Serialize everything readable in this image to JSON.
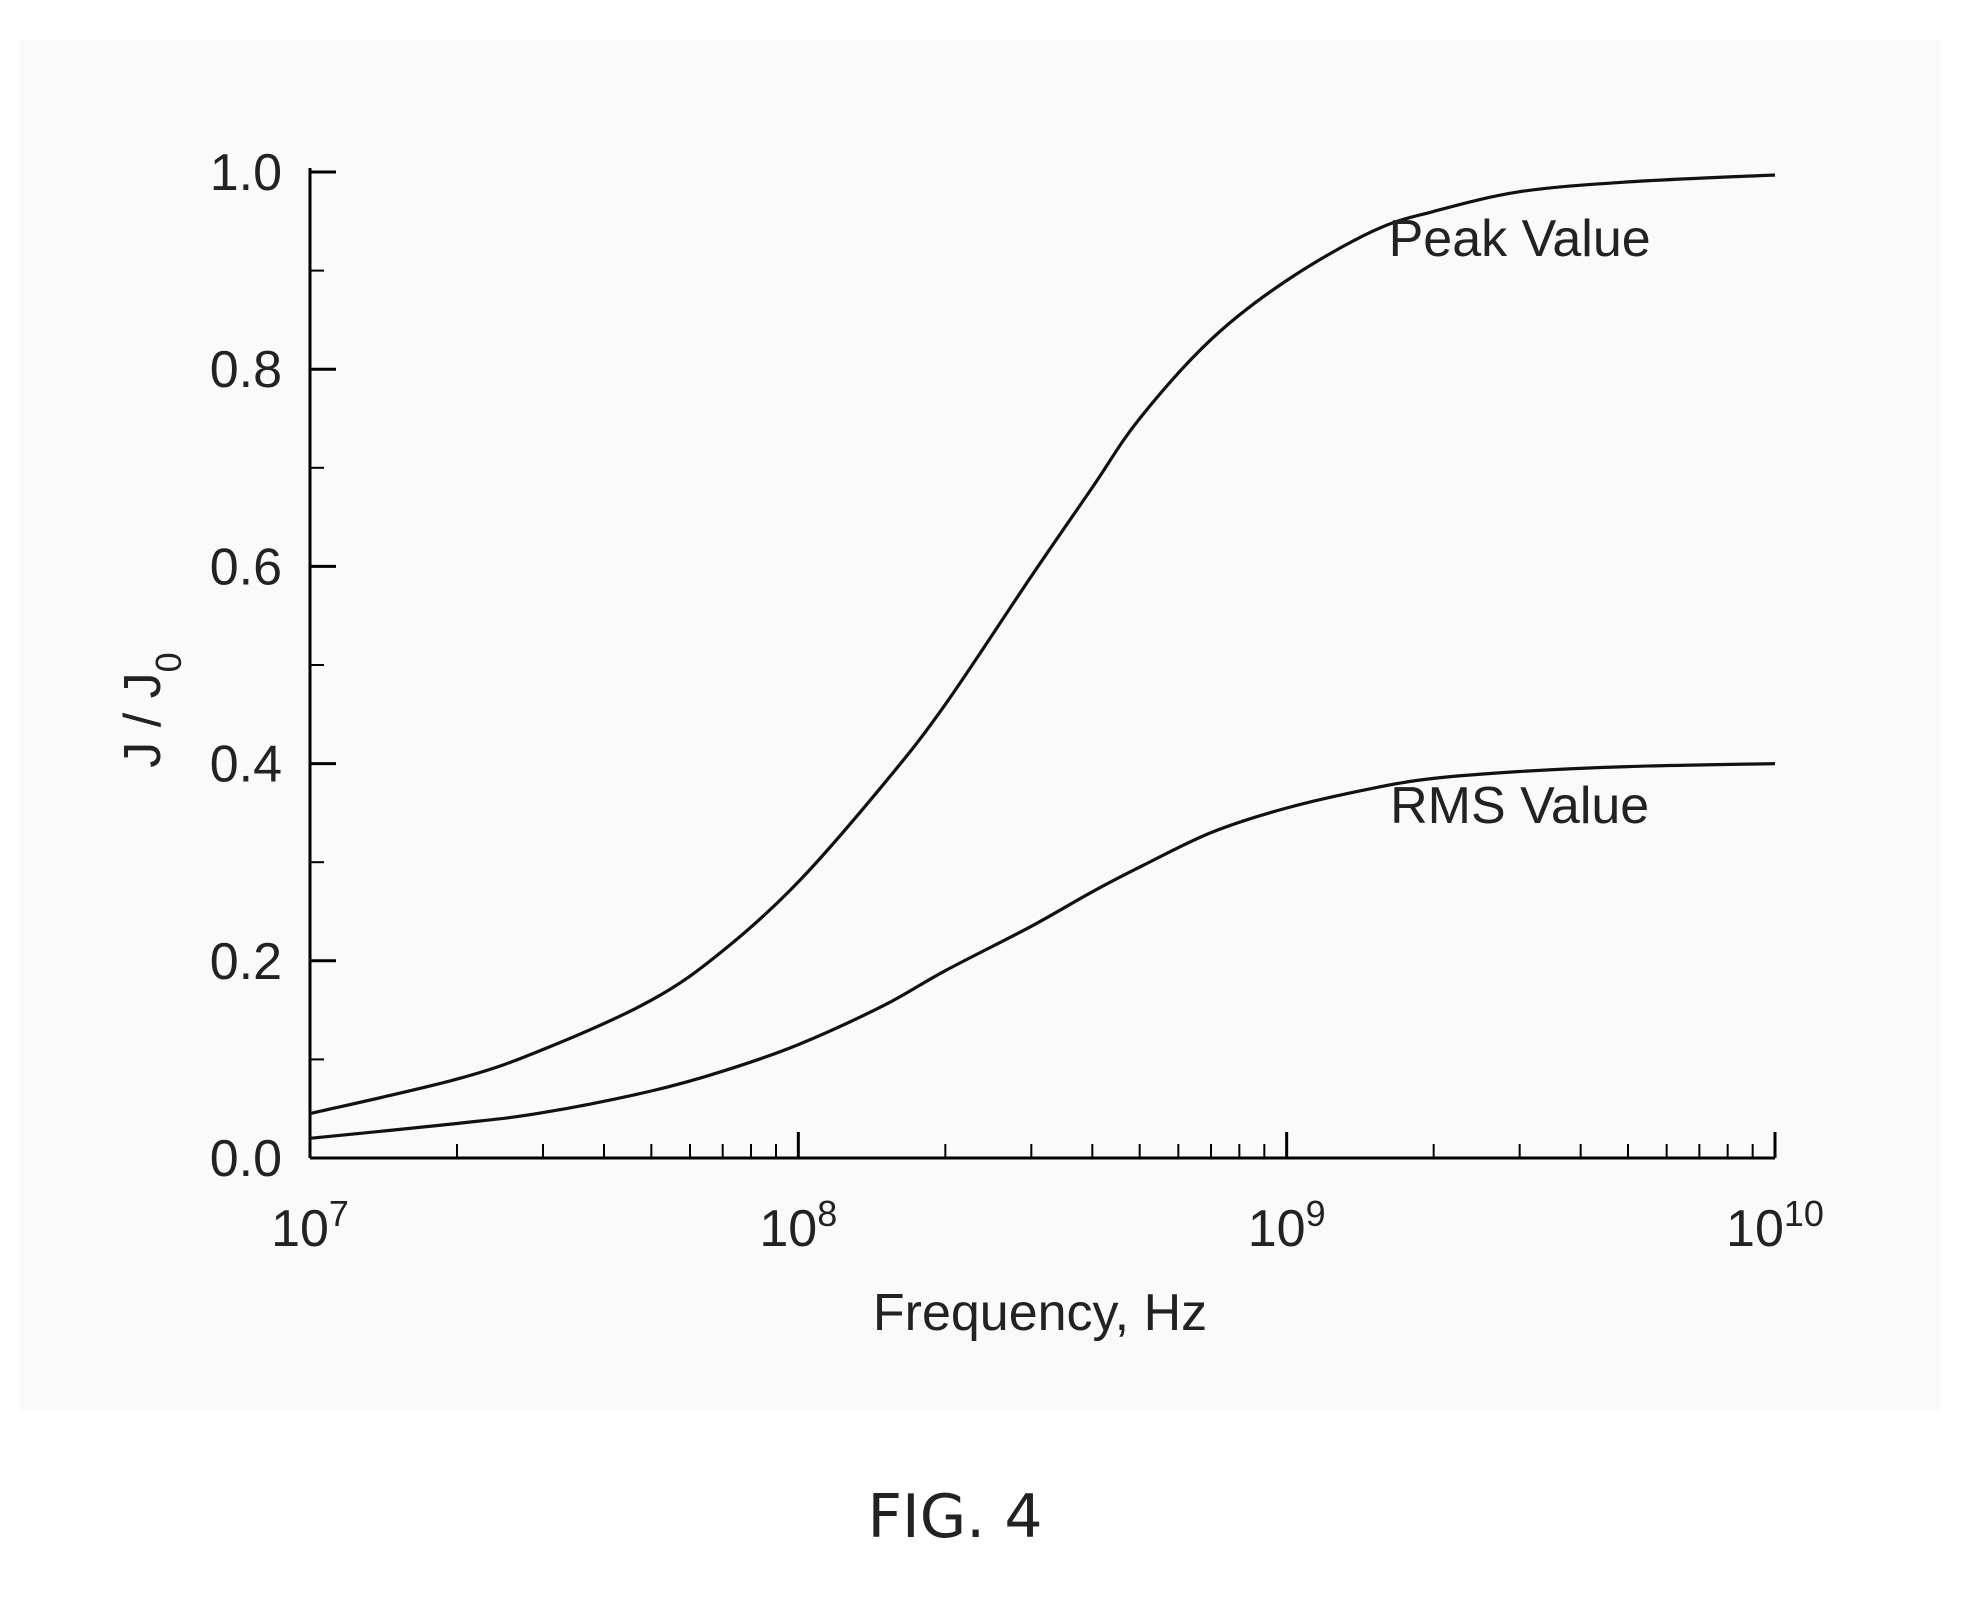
{
  "chart_data": {
    "type": "line",
    "xscale": "log",
    "xlim": [
      10000000,
      10000000000
    ],
    "ylim": [
      0,
      1.0
    ],
    "xlabel": "Frequency, Hz",
    "ylabel": {
      "main": "J / J",
      "sub": "0"
    },
    "x_tick_labels": [
      {
        "base": "10",
        "exp": "7",
        "value": 10000000
      },
      {
        "base": "10",
        "exp": "8",
        "value": 100000000
      },
      {
        "base": "10",
        "exp": "9",
        "value": 1000000000
      },
      {
        "base": "10",
        "exp": "10",
        "value": 10000000000
      }
    ],
    "y_tick_labels": [
      {
        "label": "0.0",
        "value": 0.0
      },
      {
        "label": "0.2",
        "value": 0.2
      },
      {
        "label": "0.4",
        "value": 0.4
      },
      {
        "label": "0.6",
        "value": 0.6
      },
      {
        "label": "0.8",
        "value": 0.8
      },
      {
        "label": "1.0",
        "value": 1.0
      }
    ],
    "annotations": [
      {
        "text": "Peak Value",
        "x": 3000000000,
        "y": 0.915
      },
      {
        "text": "RMS Value",
        "x": 3000000000,
        "y": 0.34
      }
    ],
    "series": [
      {
        "x": [
          10000000,
          20000000,
          30000000,
          50000000,
          70000000,
          100000000,
          150000000,
          200000000,
          300000000,
          400000000,
          500000000,
          700000000,
          1000000000,
          1500000000,
          2000000000,
          3000000000,
          5000000000,
          10000000000
        ],
        "y": [
          0.045,
          0.08,
          0.11,
          0.16,
          0.21,
          0.28,
          0.38,
          0.46,
          0.59,
          0.68,
          0.75,
          0.83,
          0.89,
          0.94,
          0.96,
          0.98,
          0.99,
          0.997
        ]
      },
      {
        "x": [
          10000000,
          20000000,
          30000000,
          50000000,
          70000000,
          100000000,
          150000000,
          200000000,
          300000000,
          400000000,
          500000000,
          700000000,
          1000000000,
          1500000000,
          2000000000,
          3000000000,
          5000000000,
          10000000000
        ],
        "y": [
          0.02,
          0.035,
          0.046,
          0.068,
          0.088,
          0.115,
          0.155,
          0.19,
          0.235,
          0.27,
          0.295,
          0.33,
          0.355,
          0.375,
          0.385,
          0.392,
          0.397,
          0.4
        ]
      }
    ]
  },
  "caption": "FIG. 4"
}
